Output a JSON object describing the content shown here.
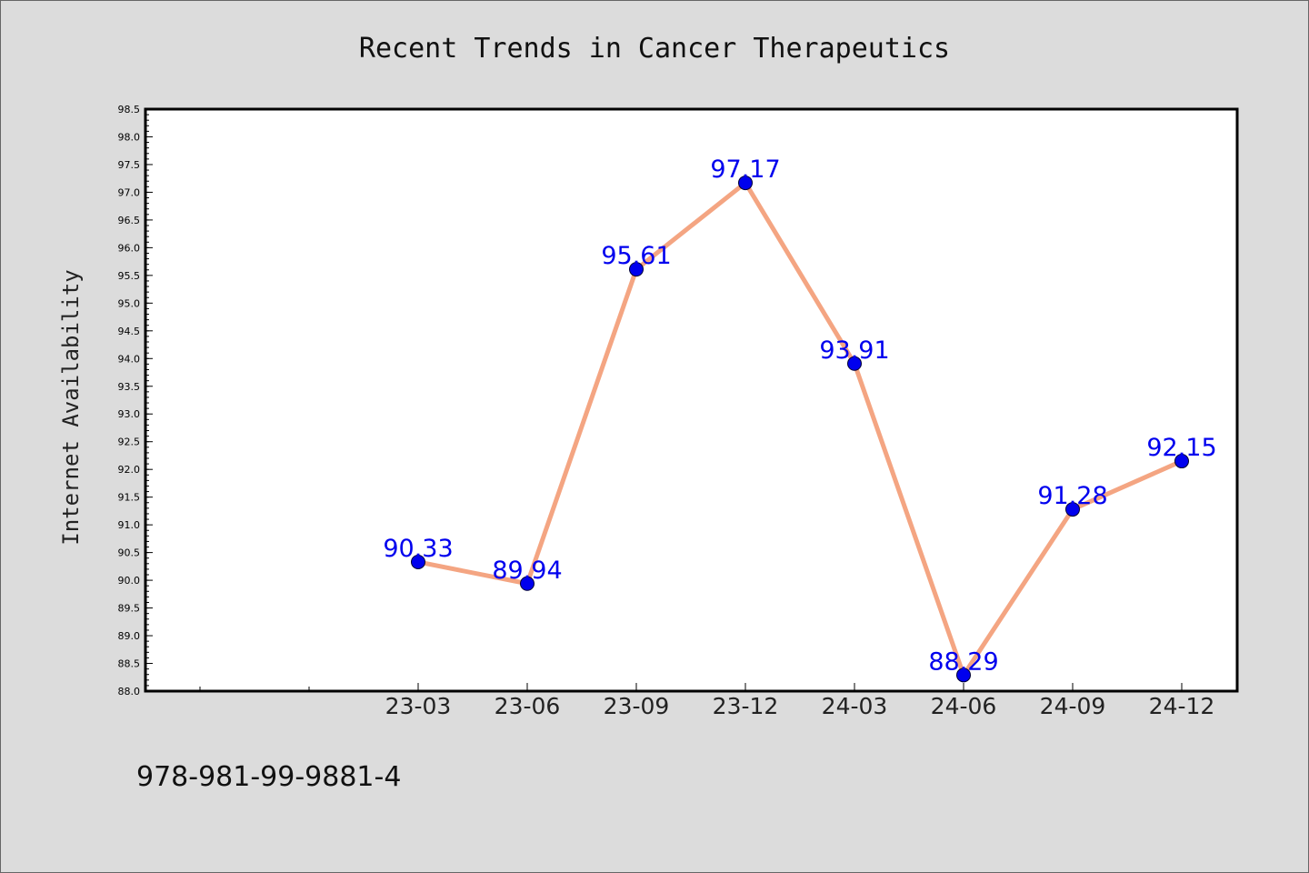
{
  "chart_data": {
    "type": "line",
    "title": "Recent Trends in Cancer Therapeutics",
    "xlabel": "",
    "ylabel": "Internet Availability",
    "categories": [
      "23-03",
      "23-06",
      "23-09",
      "23-12",
      "24-03",
      "24-06",
      "24-09",
      "24-12"
    ],
    "series": [
      {
        "values": [
          90.33,
          89.94,
          95.61,
          97.17,
          93.91,
          88.29,
          91.28,
          92.15
        ],
        "labels": [
          "90.33",
          "89.94",
          "95.61",
          "97.17",
          "93.91",
          "88.29",
          "91.28",
          "92.15"
        ]
      }
    ],
    "ylim": [
      88.0,
      98.5
    ],
    "yticks": [
      "88.0",
      "88.5",
      "89.0",
      "89.5",
      "90.0",
      "90.5",
      "91.0",
      "91.5",
      "92.0",
      "92.5",
      "93.0",
      "93.5",
      "94.0",
      "94.5",
      "95.0",
      "95.5",
      "96.0",
      "96.5",
      "97.0",
      "97.5",
      "98.0",
      "98.5"
    ],
    "grid": false,
    "legend": "none",
    "colors": {
      "background": "#dcdcdc",
      "plot_background": "#ffffff",
      "line": "#f4a582",
      "marker": "#0000ee",
      "label": "#0000ee"
    }
  },
  "footer": {
    "isbn": "978-981-99-9881-4"
  }
}
